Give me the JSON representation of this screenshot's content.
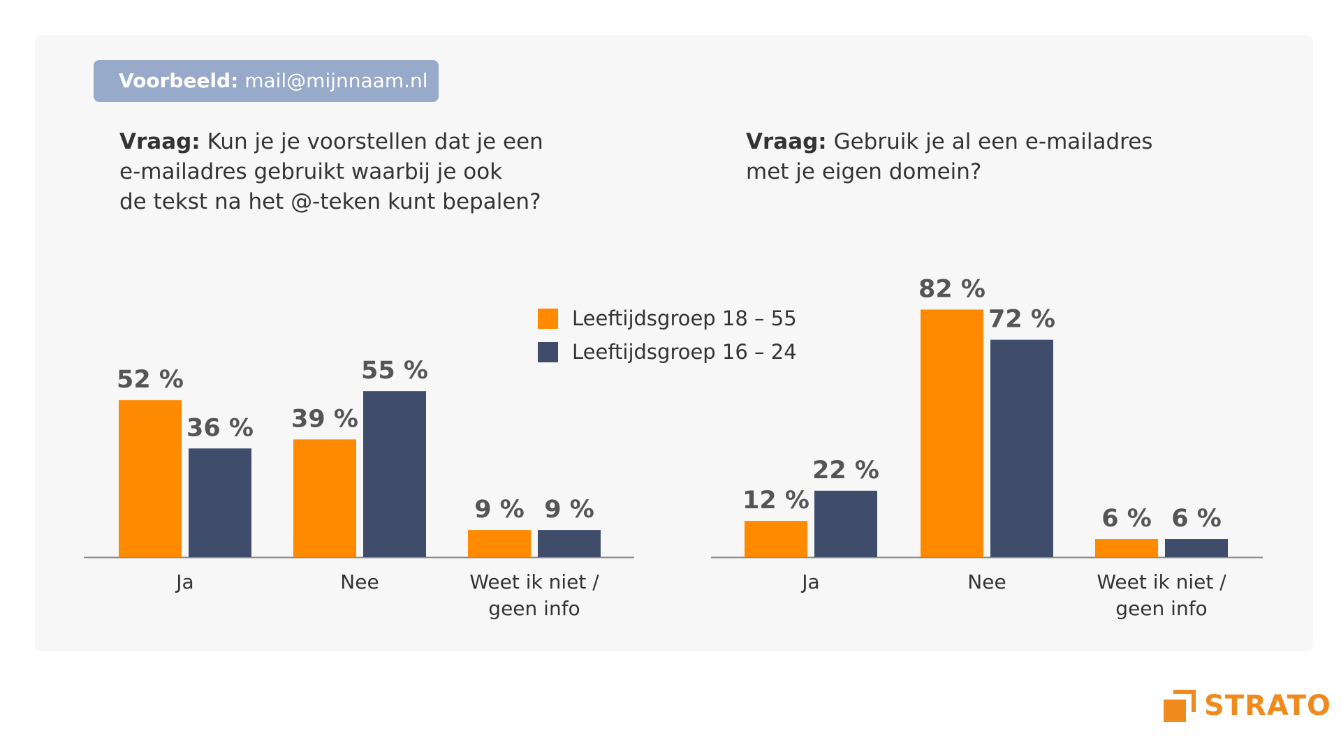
{
  "example": {
    "label": "Voorbeeld:",
    "value": "mail@mijnnaam.nl"
  },
  "questions": [
    {
      "label": "Vraag:",
      "lines": [
        "Kun je je voorstellen dat je een",
        "e-mailadres gebruikt waarbij je ook",
        "de tekst na het @-teken kunt bepalen?"
      ]
    },
    {
      "label": "Vraag:",
      "lines": [
        "Gebruik je al een e-mailadres",
        "met je eigen domein?"
      ]
    }
  ],
  "legend": [
    {
      "label": "Leeftijdsgroep 18 – 55",
      "color": "#ff8a00"
    },
    {
      "label": "Leeftijdsgroep 16 – 24",
      "color": "#3f4d6b"
    }
  ],
  "colors": {
    "panel": "#f7f7f7",
    "badge": "#98aac9",
    "accent": "#ff8a00",
    "navy": "#3f4d6b",
    "logo": "#f08a1c"
  },
  "logo": {
    "text": "STRATO",
    "icon": "strato-bracket-icon"
  },
  "chart_data": [
    {
      "type": "bar",
      "categories": [
        [
          "Ja"
        ],
        [
          "Nee"
        ],
        [
          "Weet ik niet /",
          "geen info"
        ]
      ],
      "series": [
        {
          "name": "Leeftijdsgroep 18 – 55",
          "values": [
            52,
            39,
            9
          ],
          "labels": [
            "52 %",
            "39 %",
            "9 %"
          ]
        },
        {
          "name": "Leeftijdsgroep 16 – 24",
          "values": [
            36,
            55,
            9
          ],
          "labels": [
            "36 %",
            "55 %",
            "9 %"
          ]
        }
      ],
      "unit": "%",
      "grid": false
    },
    {
      "type": "bar",
      "categories": [
        [
          "Ja"
        ],
        [
          "Nee"
        ],
        [
          "Weet ik niet /",
          "geen info"
        ]
      ],
      "series": [
        {
          "name": "Leeftijdsgroep 18 – 55",
          "values": [
            12,
            82,
            6
          ],
          "labels": [
            "12 %",
            "82 %",
            "6 %"
          ]
        },
        {
          "name": "Leeftijdsgroep 16 – 24",
          "values": [
            22,
            72,
            6
          ],
          "labels": [
            "22 %",
            "72 %",
            "6 %"
          ]
        }
      ],
      "unit": "%",
      "grid": false
    }
  ]
}
